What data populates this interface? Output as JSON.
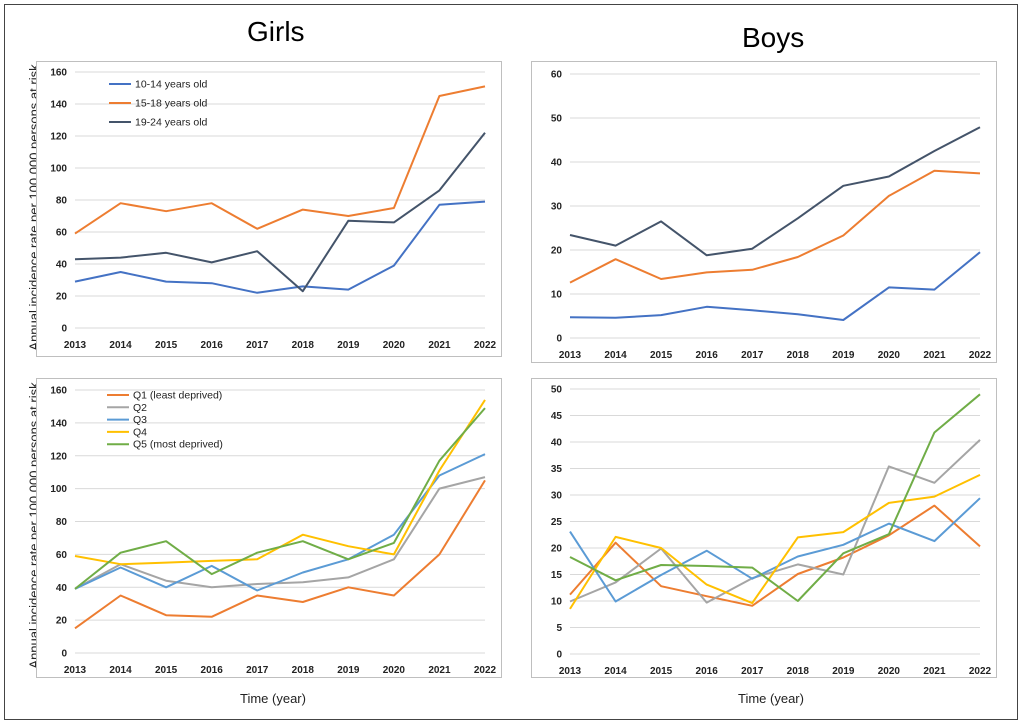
{
  "titles": {
    "girls": "Girls",
    "boys": "Boys"
  },
  "ylabel": "Annual incidence rate per 100 000 persons at risk",
  "xlabel": "Time (year)",
  "colors": {
    "age_10_14": "#4472c4",
    "age_15_18": "#ed7d31",
    "age_19_24": "#44546a",
    "q1": "#ed7d31",
    "q2": "#a5a5a5",
    "q3": "#5b9bd5",
    "q4": "#ffc000",
    "q5": "#70ad47",
    "grid": "#d9d9d9"
  },
  "chart_data": [
    {
      "id": "girls-age",
      "type": "line",
      "title": "Girls",
      "ylabel": "Annual incidence rate per 100 000 persons at risk",
      "xlabel": "",
      "x": [
        "2013",
        "2014",
        "2015",
        "2016",
        "2017",
        "2018",
        "2019",
        "2020",
        "2021",
        "2022"
      ],
      "ylim": [
        0,
        160
      ],
      "yticks": [
        0,
        20,
        40,
        60,
        80,
        100,
        120,
        140,
        160
      ],
      "grid": true,
      "legend": "top-left",
      "series": [
        {
          "name": "10-14 years old",
          "color": "#4472c4",
          "values": [
            29,
            35,
            29,
            28,
            22,
            26,
            24,
            39,
            77,
            79
          ]
        },
        {
          "name": "15-18 years old",
          "color": "#ed7d31",
          "values": [
            59,
            78,
            73,
            78,
            62,
            74,
            70,
            75,
            145,
            151
          ]
        },
        {
          "name": "19-24 years old",
          "color": "#44546a",
          "values": [
            43,
            44,
            47,
            41,
            48,
            23,
            67,
            66,
            86,
            122
          ]
        }
      ]
    },
    {
      "id": "boys-age",
      "type": "line",
      "title": "Boys",
      "ylabel": "",
      "xlabel": "",
      "x": [
        "2013",
        "2014",
        "2015",
        "2016",
        "2017",
        "2018",
        "2019",
        "2020",
        "2021",
        "2022"
      ],
      "ylim": [
        0,
        60
      ],
      "yticks": [
        0,
        10,
        20,
        30,
        40,
        50,
        60
      ],
      "grid": true,
      "legend": "none",
      "series": [
        {
          "color": "#4472c4",
          "values": [
            4.7,
            4.6,
            5.2,
            7.1,
            6.3,
            5.4,
            4.1,
            11.5,
            11,
            19.5
          ]
        },
        {
          "color": "#ed7d31",
          "values": [
            12.6,
            17.9,
            13.4,
            14.9,
            15.5,
            18.4,
            23.3,
            32.3,
            38,
            37.4
          ]
        },
        {
          "color": "#44546a",
          "values": [
            23.4,
            21,
            26.5,
            18.8,
            20.3,
            27.2,
            34.6,
            36.7,
            42.5,
            47.9
          ]
        }
      ]
    },
    {
      "id": "girls-quintile",
      "type": "line",
      "title": "",
      "ylabel": "Annual incidence rate per 100 000 persons at risk",
      "xlabel": "Time (year)",
      "x": [
        "2013",
        "2014",
        "2015",
        "2016",
        "2017",
        "2018",
        "2019",
        "2020",
        "2021",
        "2022"
      ],
      "ylim": [
        0,
        160
      ],
      "yticks": [
        0,
        20,
        40,
        60,
        80,
        100,
        120,
        140,
        160
      ],
      "grid": true,
      "legend": "top-left",
      "series": [
        {
          "name": "Q1 (least deprived)",
          "color": "#ed7d31",
          "values": [
            15,
            35,
            23,
            22,
            35,
            31,
            40,
            35,
            60,
            105
          ]
        },
        {
          "name": "Q2",
          "color": "#a5a5a5",
          "values": [
            39,
            54,
            44,
            40,
            42,
            43,
            46,
            57,
            100,
            107
          ]
        },
        {
          "name": "Q3",
          "color": "#5b9bd5",
          "values": [
            39,
            52,
            40,
            53,
            38,
            49,
            57,
            72,
            108,
            121
          ]
        },
        {
          "name": "Q4",
          "color": "#ffc000",
          "values": [
            59,
            54,
            55,
            56,
            57,
            72,
            65,
            60,
            111,
            154
          ]
        },
        {
          "name": "Q5 (most deprived)",
          "color": "#70ad47",
          "values": [
            39,
            61,
            68,
            48,
            61,
            68,
            57,
            67,
            117,
            149
          ]
        }
      ]
    },
    {
      "id": "boys-quintile",
      "type": "line",
      "title": "",
      "ylabel": "",
      "xlabel": "Time (year)",
      "x": [
        "2013",
        "2014",
        "2015",
        "2016",
        "2017",
        "2018",
        "2019",
        "2020",
        "2021",
        "2022"
      ],
      "ylim": [
        0,
        50
      ],
      "yticks": [
        0,
        5,
        10,
        15,
        20,
        25,
        30,
        35,
        40,
        45,
        50
      ],
      "grid": true,
      "legend": "none",
      "series": [
        {
          "color": "#ed7d31",
          "values": [
            11.2,
            21,
            12.8,
            10.9,
            9.1,
            15.1,
            18.2,
            22.4,
            28,
            20.3
          ]
        },
        {
          "color": "#a5a5a5",
          "values": [
            9.9,
            13.5,
            19.9,
            9.7,
            14.3,
            16.9,
            15,
            35.4,
            32.3,
            40.4
          ]
        },
        {
          "color": "#5b9bd5",
          "values": [
            23.1,
            9.9,
            14.9,
            19.5,
            14.2,
            18.4,
            20.6,
            24.6,
            21.3,
            29.4
          ]
        },
        {
          "color": "#ffc000",
          "values": [
            8.5,
            22.1,
            20,
            13.1,
            9.6,
            22,
            23,
            28.5,
            29.7,
            33.8
          ]
        },
        {
          "color": "#70ad47",
          "values": [
            18.3,
            13.9,
            16.8,
            16.6,
            16.3,
            10,
            19,
            22.6,
            41.8,
            49
          ]
        }
      ]
    }
  ]
}
